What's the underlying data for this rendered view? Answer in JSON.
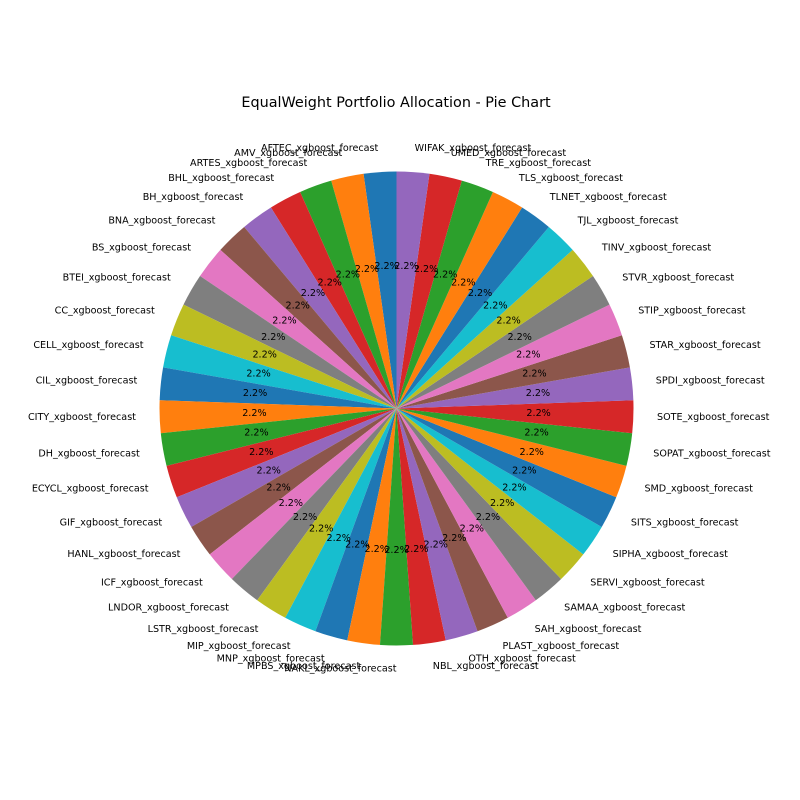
{
  "chart_data": {
    "type": "pie",
    "title": "EqualWeight Portfolio Allocation - Pie Chart",
    "start_angle_deg": 90,
    "direction": "counterclockwise",
    "slices": [
      {
        "label": "AFTEC_xgboost_forecast",
        "value": 2.2,
        "pct_label": "2.2%"
      },
      {
        "label": "AMV_xgboost_forecast",
        "value": 2.2,
        "pct_label": "2.2%"
      },
      {
        "label": "ARTES_xgboost_forecast",
        "value": 2.2,
        "pct_label": "2.2%"
      },
      {
        "label": "BHL_xgboost_forecast",
        "value": 2.2,
        "pct_label": "2.2%"
      },
      {
        "label": "BH_xgboost_forecast",
        "value": 2.2,
        "pct_label": "2.2%"
      },
      {
        "label": "BNA_xgboost_forecast",
        "value": 2.2,
        "pct_label": "2.2%"
      },
      {
        "label": "BS_xgboost_forecast",
        "value": 2.2,
        "pct_label": "2.2%"
      },
      {
        "label": "BTEI_xgboost_forecast",
        "value": 2.2,
        "pct_label": "2.2%"
      },
      {
        "label": "CC_xgboost_forecast",
        "value": 2.2,
        "pct_label": "2.2%"
      },
      {
        "label": "CELL_xgboost_forecast",
        "value": 2.2,
        "pct_label": "2.2%"
      },
      {
        "label": "CIL_xgboost_forecast",
        "value": 2.2,
        "pct_label": "2.2%"
      },
      {
        "label": "CITY_xgboost_forecast",
        "value": 2.2,
        "pct_label": "2.2%"
      },
      {
        "label": "DH_xgboost_forecast",
        "value": 2.2,
        "pct_label": "2.2%"
      },
      {
        "label": "ECYCL_xgboost_forecast",
        "value": 2.2,
        "pct_label": "2.2%"
      },
      {
        "label": "GIF_xgboost_forecast",
        "value": 2.2,
        "pct_label": "2.2%"
      },
      {
        "label": "HANL_xgboost_forecast",
        "value": 2.2,
        "pct_label": "2.2%"
      },
      {
        "label": "ICF_xgboost_forecast",
        "value": 2.2,
        "pct_label": "2.2%"
      },
      {
        "label": "LNDOR_xgboost_forecast",
        "value": 2.2,
        "pct_label": "2.2%"
      },
      {
        "label": "LSTR_xgboost_forecast",
        "value": 2.2,
        "pct_label": "2.2%"
      },
      {
        "label": "MIP_xgboost_forecast",
        "value": 2.2,
        "pct_label": "2.2%"
      },
      {
        "label": "MNP_xgboost_forecast",
        "value": 2.2,
        "pct_label": "2.2%"
      },
      {
        "label": "MPBS_xgboost_forecast",
        "value": 2.2,
        "pct_label": "2.2%"
      },
      {
        "label": "NAKL_xgboost_forecast",
        "value": 2.2,
        "pct_label": "2.2%"
      },
      {
        "label": "NBL_xgboost_forecast",
        "value": 2.2,
        "pct_label": "2.2%"
      },
      {
        "label": "OTH_xgboost_forecast",
        "value": 2.2,
        "pct_label": "2.2%"
      },
      {
        "label": "PLAST_xgboost_forecast",
        "value": 2.2,
        "pct_label": "2.2%"
      },
      {
        "label": "SAH_xgboost_forecast",
        "value": 2.2,
        "pct_label": "2.2%"
      },
      {
        "label": "SAMAA_xgboost_forecast",
        "value": 2.2,
        "pct_label": "2.2%"
      },
      {
        "label": "SERVI_xgboost_forecast",
        "value": 2.2,
        "pct_label": "2.2%"
      },
      {
        "label": "SIPHA_xgboost_forecast",
        "value": 2.2,
        "pct_label": "2.2%"
      },
      {
        "label": "SITS_xgboost_forecast",
        "value": 2.2,
        "pct_label": "2.2%"
      },
      {
        "label": "SMD_xgboost_forecast",
        "value": 2.2,
        "pct_label": "2.2%"
      },
      {
        "label": "SOPAT_xgboost_forecast",
        "value": 2.2,
        "pct_label": "2.2%"
      },
      {
        "label": "SOTE_xgboost_forecast",
        "value": 2.2,
        "pct_label": "2.2%"
      },
      {
        "label": "SPDI_xgboost_forecast",
        "value": 2.2,
        "pct_label": "2.2%"
      },
      {
        "label": "STAR_xgboost_forecast",
        "value": 2.2,
        "pct_label": "2.2%"
      },
      {
        "label": "STIP_xgboost_forecast",
        "value": 2.2,
        "pct_label": "2.2%"
      },
      {
        "label": "STVR_xgboost_forecast",
        "value": 2.2,
        "pct_label": "2.2%"
      },
      {
        "label": "TINV_xgboost_forecast",
        "value": 2.2,
        "pct_label": "2.2%"
      },
      {
        "label": "TJL_xgboost_forecast",
        "value": 2.2,
        "pct_label": "2.2%"
      },
      {
        "label": "TLNET_xgboost_forecast",
        "value": 2.2,
        "pct_label": "2.2%"
      },
      {
        "label": "TLS_xgboost_forecast",
        "value": 2.2,
        "pct_label": "2.2%"
      },
      {
        "label": "TRE_xgboost_forecast",
        "value": 2.2,
        "pct_label": "2.2%"
      },
      {
        "label": "UMED_xgboost_forecast",
        "value": 2.2,
        "pct_label": "2.2%"
      },
      {
        "label": "WIFAK_xgboost_forecast",
        "value": 2.2,
        "pct_label": "2.2%"
      }
    ],
    "colors": [
      "#1f77b4",
      "#ff7f0e",
      "#2ca02c",
      "#d62728",
      "#9467bd",
      "#8c564b",
      "#e377c2",
      "#7f7f7f",
      "#bcbd22",
      "#17becf"
    ]
  }
}
